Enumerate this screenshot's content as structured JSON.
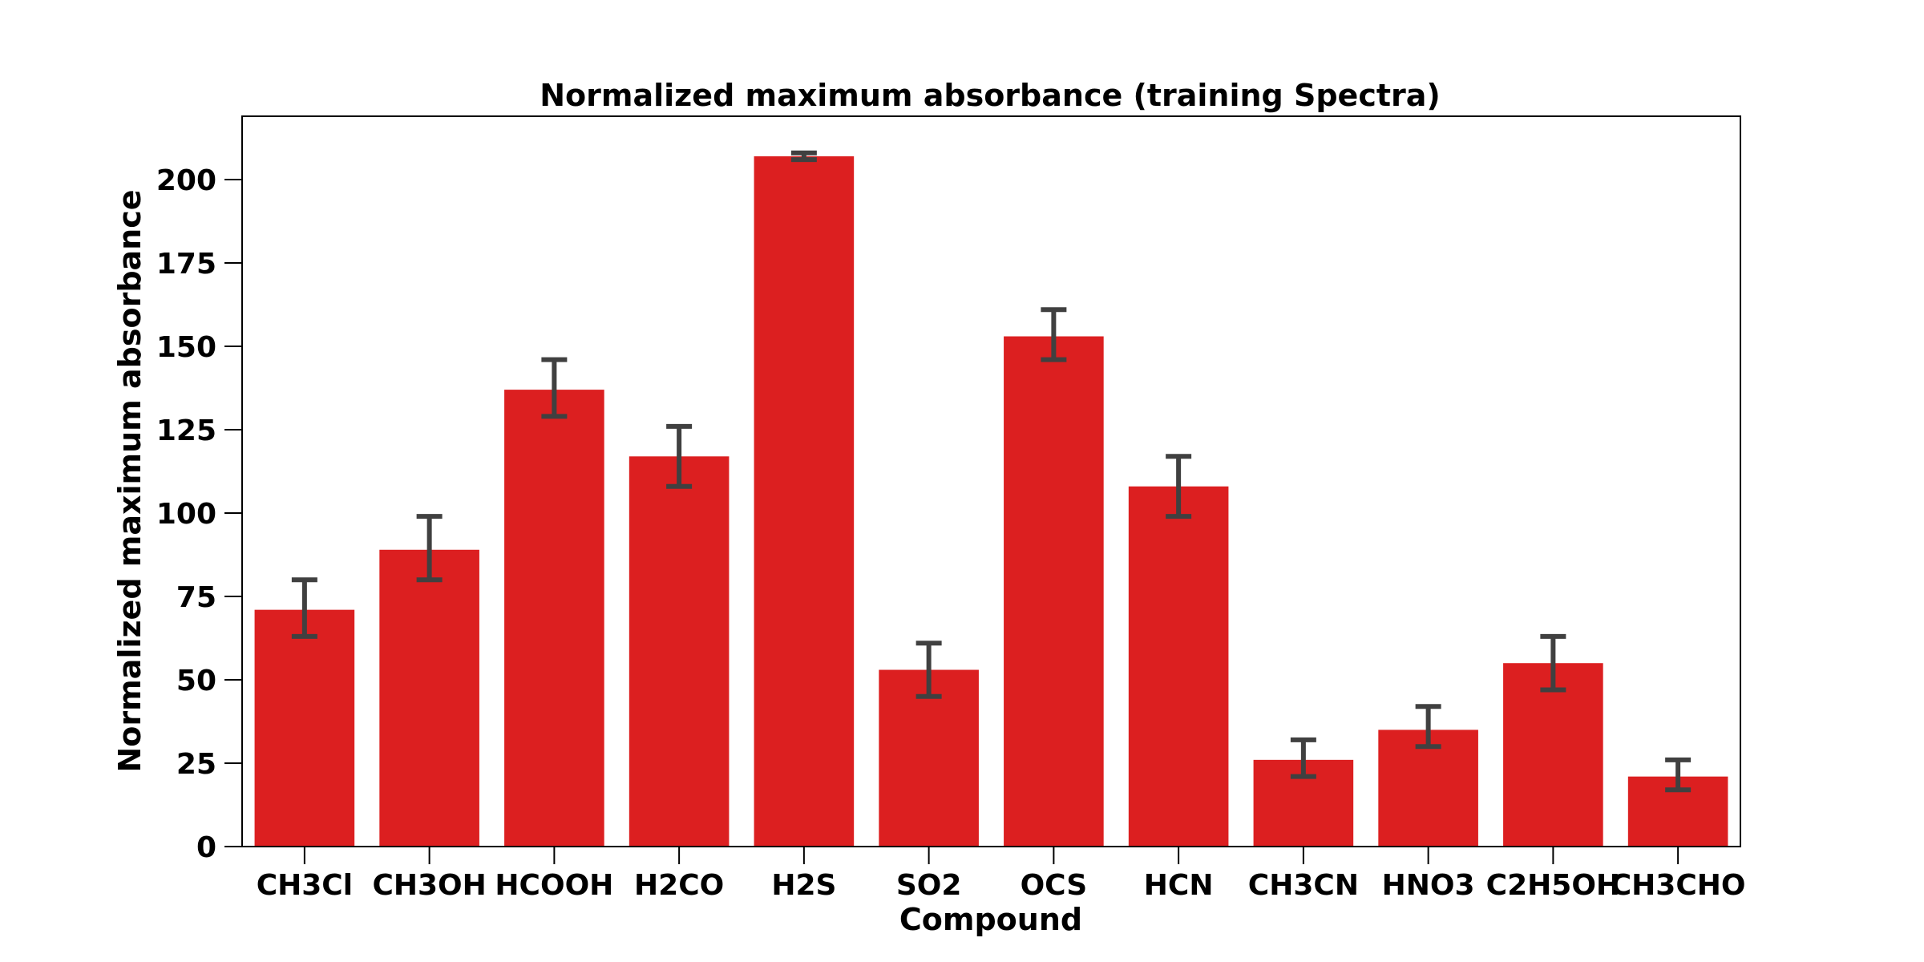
{
  "chart_data": {
    "type": "bar",
    "title": "Normalized maximum absorbance (training Spectra)",
    "xlabel": "Compound",
    "ylabel": "Normalized maximum absorbance",
    "categories": [
      "CH3Cl",
      "CH3OH",
      "HCOOH",
      "H2CO",
      "H2S",
      "SO2",
      "OCS",
      "HCN",
      "CH3CN",
      "HNO3",
      "C2H5OH",
      "CH3CHO"
    ],
    "values": [
      71,
      89,
      137,
      117,
      207,
      53,
      153,
      108,
      26,
      35,
      55,
      21
    ],
    "error_low": [
      63,
      80,
      129,
      108,
      206,
      45,
      146,
      99,
      21,
      30,
      47,
      17
    ],
    "error_high": [
      80,
      99,
      146,
      126,
      208,
      61,
      161,
      117,
      32,
      42,
      63,
      26
    ],
    "ylim": [
      0,
      219
    ],
    "yticks": [
      0,
      25,
      50,
      75,
      100,
      125,
      150,
      175,
      200
    ],
    "grid": false,
    "legend": "none",
    "bar_color": "#dc1f20",
    "error_color": "#404040"
  }
}
